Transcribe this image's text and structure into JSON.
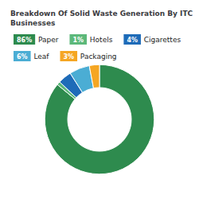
{
  "chart_data": {
    "type": "donut",
    "title": "Breakdown Of Solid Waste Generation By ITC\nBusinesses",
    "categories": [
      "Paper",
      "Hotels",
      "Cigarettes",
      "Leaf",
      "Packaging"
    ],
    "values": [
      86,
      1,
      4,
      6,
      3
    ],
    "value_labels": [
      "86%",
      "1%",
      "4%",
      "6%",
      "3%"
    ],
    "colors": [
      "#2e8b4e",
      "#5cb87a",
      "#1e6bb8",
      "#4badd4",
      "#f5a623"
    ],
    "legend": "top"
  }
}
